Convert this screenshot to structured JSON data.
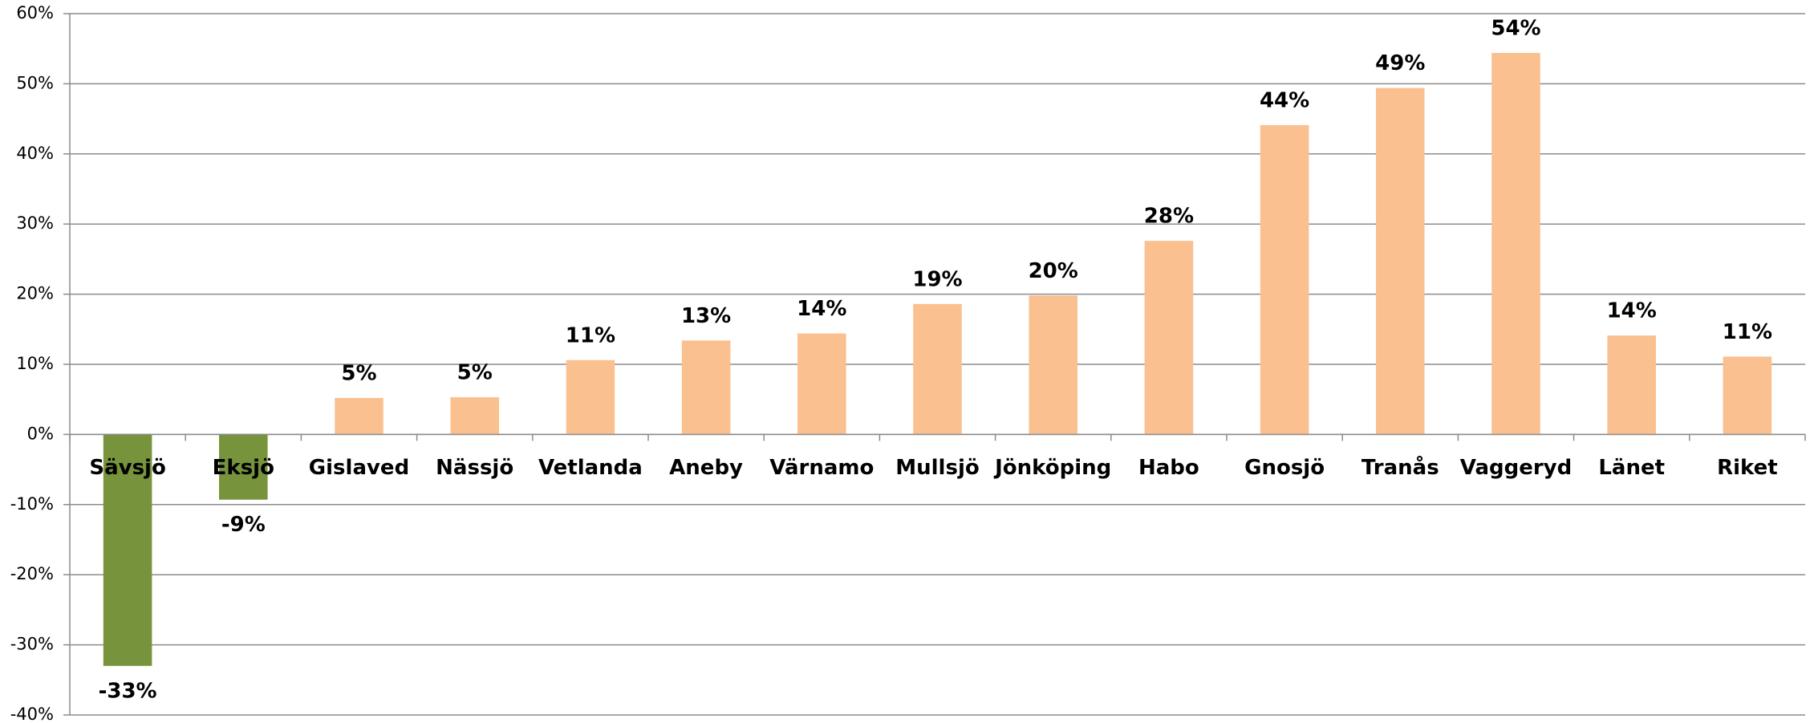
{
  "chart_data": {
    "type": "bar",
    "categories": [
      "Sävsjö",
      "Eksjö",
      "Gislaved",
      "Nässjö",
      "Vetlanda",
      "Aneby",
      "Värnamo",
      "Mullsjö",
      "Jönköping",
      "Habo",
      "Gnosjö",
      "Tranås",
      "Vaggeryd",
      "Länet",
      "Riket"
    ],
    "values": [
      -33,
      -9.3,
      5.2,
      5.3,
      10.6,
      13.4,
      14.4,
      18.6,
      19.8,
      27.6,
      44.1,
      49.4,
      54.4,
      14.1,
      11.1
    ],
    "value_labels": [
      "-33%",
      "-9%",
      "5%",
      "5%",
      "11%",
      "13%",
      "14%",
      "19%",
      "20%",
      "28%",
      "44%",
      "49%",
      "54%",
      "14%",
      "11%"
    ],
    "colors": [
      "#77933c",
      "#77933c",
      "#fac090",
      "#fac090",
      "#fac090",
      "#fac090",
      "#fac090",
      "#fac090",
      "#fac090",
      "#fac090",
      "#fac090",
      "#fac090",
      "#fac090",
      "#fac090",
      "#fac090"
    ],
    "ylim": [
      -40,
      60
    ],
    "yticks": [
      {
        "value": -40,
        "label": "-40%"
      },
      {
        "value": -30,
        "label": "-30%"
      },
      {
        "value": -20,
        "label": "-20%"
      },
      {
        "value": -10,
        "label": "-10%"
      },
      {
        "value": 0,
        "label": "0%"
      },
      {
        "value": 10,
        "label": "10%"
      },
      {
        "value": 20,
        "label": "20%"
      },
      {
        "value": 30,
        "label": "30%"
      },
      {
        "value": 40,
        "label": "40%"
      },
      {
        "value": 50,
        "label": "50%"
      },
      {
        "value": 60,
        "label": "60%"
      }
    ],
    "grid": true
  }
}
